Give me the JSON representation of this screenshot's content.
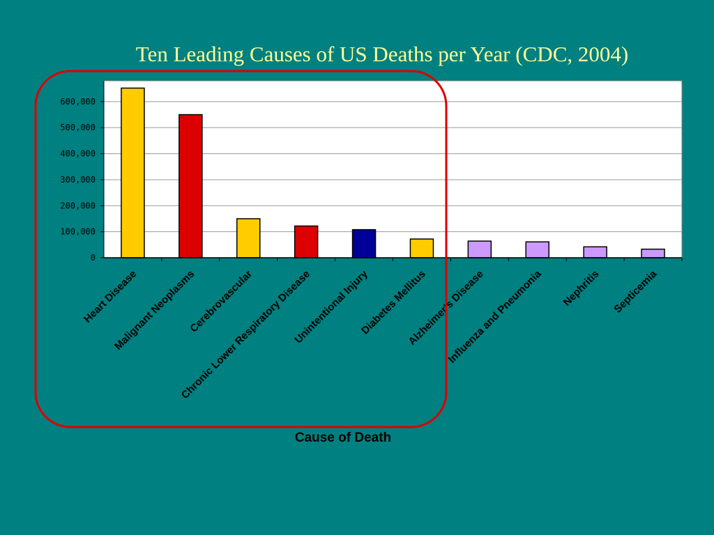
{
  "slide": {
    "background": "#008080",
    "highlight_color": "#dd0000"
  },
  "chart_data": {
    "type": "bar",
    "title": "Ten Leading Causes of US Deaths per Year (CDC, 2004)",
    "xlabel": "Cause of Death",
    "ylabel": "",
    "ylim": [
      0,
      680000
    ],
    "yticks": [
      0,
      100000,
      200000,
      300000,
      400000,
      500000,
      600000
    ],
    "ytick_labels": [
      "0",
      "100,000",
      "200,000",
      "300,000",
      "400,000",
      "500,000",
      "600,000"
    ],
    "grid": true,
    "categories": [
      "Heart Disease",
      "Malignant Neoplasms",
      "Cerebrovascular",
      "Chronic Lower Respiratory Disease",
      "Unintentional Injury",
      "Diabetes Mellitus",
      "Alzheimer's Disease",
      "Influenza and Pneumonia",
      "Nephritis",
      "Septicemia"
    ],
    "values": [
      652000,
      550000,
      150000,
      122000,
      108000,
      72000,
      64000,
      61000,
      42000,
      33000
    ],
    "colors": [
      "#ffcc00",
      "#dd0000",
      "#ffcc00",
      "#dd0000",
      "#000099",
      "#ffcc00",
      "#cc99ff",
      "#cc99ff",
      "#cc99ff",
      "#cc99ff"
    ]
  }
}
